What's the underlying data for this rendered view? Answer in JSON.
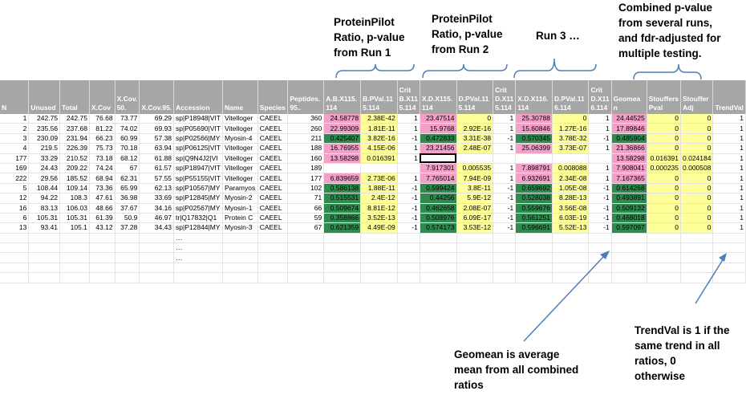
{
  "annotations": {
    "run1": "ProteinPilot Ratio, p-value from Run 1",
    "run2": "ProteinPilot Ratio, p-value from Run 2",
    "run3": "Run 3 …",
    "combined": "Combined p-value from several runs, and fdr-adjusted for multiple testing.",
    "geomean": "Geomean is average mean from all combined ratios",
    "trendval": "TrendVal is 1 if the same trend in all ratios, 0 otherwise"
  },
  "annotation_lines": {
    "run1": [
      "ProteinPilot",
      "Ratio, p-value",
      "from Run 1"
    ],
    "run2": [
      "ProteinPilot",
      "Ratio, p-value",
      "from Run 2"
    ],
    "combined": [
      "Combined p-value",
      "from several runs,",
      "and fdr-adjusted for",
      "multiple testing."
    ],
    "geomean": [
      "Geomean is average",
      "mean from all combined",
      "ratios"
    ],
    "trendval": [
      "TrendVal is 1 if the",
      "same trend in all",
      "ratios, 0",
      "otherwise"
    ]
  },
  "colors": {
    "pink": "#f3a0c9",
    "yellow": "#ffff99",
    "green": "#2f8a4f",
    "header": "#a6a6a6",
    "arrow": "#4f7db5"
  },
  "table": {
    "headers": [
      "N",
      "Unused",
      "Total",
      "X.Cov",
      "X.Cov.50.",
      "X.Cov.95.",
      "Accession",
      "Name",
      "Species",
      "Peptides.95..",
      "A.B.X115.114",
      "B.PVal.115.114",
      "Crit B.X115.114",
      "X.D.X115.114",
      "D.PVal.115.114",
      "Crit D.X115.114",
      "X.D.X116.114",
      "D.PVal.116.114",
      "Crit D.X116.114",
      "Geomean",
      "Stouffers Pval",
      "Stouffer Adj",
      "TrendVal"
    ],
    "header_display": [
      "N",
      "Unused",
      "Total",
      "X.Cov",
      "X.Cov.\n50.",
      "X.Cov.95.",
      "Accession",
      "Name",
      "Species",
      "Peptides.\n95..",
      "A.B.X115.\n114",
      "B.PVal.11\n5.114",
      "Crit\nB.X11\n5.114",
      "X.D.X115.\n114",
      "D.PVal.11\n5.114",
      "Crit\nD.X11\n5.114",
      "X.D.X116.\n114",
      "D.PVal.11\n6.114",
      "Crit\nD.X11\n6.114",
      "Geomea\nn",
      "Stouffers\nPval",
      "Stouffer\nAdj",
      "TrendVal"
    ],
    "rows": [
      [
        "1",
        "242.75",
        "242.75",
        "76.68",
        "73.77",
        "69.29",
        "sp|P18948|VIT",
        "Vitelloger",
        "CAEEL",
        "360",
        "24.58778",
        "2.38E-42",
        "1",
        "23.47514",
        "0",
        "1",
        "25.30788",
        "0",
        "1",
        "24.44525",
        "0",
        "0",
        "1"
      ],
      [
        "2",
        "235.56",
        "237.68",
        "81.22",
        "74.02",
        "69.93",
        "sp|P05690|VIT",
        "Vitelloger",
        "CAEEL",
        "260",
        "22.99309",
        "1.81E-11",
        "1",
        "15.9768",
        "2.92E-16",
        "1",
        "15.60846",
        "1.27E-16",
        "1",
        "17.89846",
        "0",
        "0",
        "1"
      ],
      [
        "3",
        "230.09",
        "231.94",
        "66.23",
        "60.99",
        "57.38",
        "sp|P02566|MY",
        "Myosin-4",
        "CAEEL",
        "211",
        "0.425407",
        "3.82E-16",
        "-1",
        "0.472833",
        "3.31E-38",
        "-1",
        "0.570345",
        "3.78E-32",
        "-1",
        "0.485904",
        "0",
        "0",
        "1"
      ],
      [
        "4",
        "219.5",
        "226.39",
        "75.73",
        "70.18",
        "63.94",
        "sp|P06125|VIT",
        "Vitelloger",
        "CAEEL",
        "188",
        "16.76955",
        "4.15E-06",
        "1",
        "23.21456",
        "2.48E-07",
        "1",
        "25.06399",
        "3.73E-07",
        "1",
        "21.36866",
        "0",
        "0",
        "1"
      ],
      [
        "177",
        "33.29",
        "210.52",
        "73.18",
        "68.12",
        "61.88",
        "sp|Q9N4J2|VI",
        "Vitelloger",
        "CAEEL",
        "160",
        "13.58298",
        "0.016391",
        "1",
        "",
        "",
        "",
        "",
        "",
        "",
        "13.58298",
        "0.016391",
        "0.024184",
        "1"
      ],
      [
        "169",
        "24.43",
        "209.22",
        "74.24",
        "67",
        "61.57",
        "sp|P18947|VIT",
        "Vitelloger",
        "CAEEL",
        "189",
        "",
        "",
        "",
        "7.917301",
        "0.005535",
        "1",
        "7.898791",
        "0.008088",
        "1",
        "7.908041",
        "0.000235",
        "0.000508",
        "1"
      ],
      [
        "222",
        "29.56",
        "185.52",
        "68.94",
        "62.31",
        "57.55",
        "sp|P55155|VIT",
        "Vitelloger",
        "CAEEL",
        "177",
        "6.839659",
        "2.73E-06",
        "1",
        "7.765014",
        "7.94E-09",
        "1",
        "6.932691",
        "2.34E-08",
        "1",
        "7.167365",
        "0",
        "0",
        "1"
      ],
      [
        "5",
        "108.44",
        "109.14",
        "73.36",
        "65.99",
        "62.13",
        "sp|P10567|MY",
        "Paramyos",
        "CAEEL",
        "102",
        "0.586138",
        "1.88E-11",
        "-1",
        "0.599424",
        "3.8E-11",
        "-1",
        "0.659692",
        "1.05E-08",
        "-1",
        "0.614268",
        "0",
        "0",
        "1"
      ],
      [
        "12",
        "94.22",
        "108.3",
        "47.61",
        "36.98",
        "33.69",
        "sp|P12845|MY",
        "Myosin-2",
        "CAEEL",
        "71",
        "0.515531",
        "2.4E-12",
        "-1",
        "0.44256",
        "5.9E-12",
        "-1",
        "0.528038",
        "8.28E-13",
        "-1",
        "0.493891",
        "0",
        "0",
        "1"
      ],
      [
        "16",
        "83.13",
        "106.03",
        "48.66",
        "37.67",
        "34.16",
        "sp|P02567|MY",
        "Myosin-1",
        "CAEEL",
        "66",
        "0.509674",
        "8.81E-12",
        "-1",
        "0.462658",
        "2.08E-07",
        "-1",
        "0.559676",
        "3.56E-08",
        "-1",
        "0.509132",
        "0",
        "0",
        "1"
      ],
      [
        "6",
        "105.31",
        "105.31",
        "61.39",
        "50.9",
        "46.97",
        "tr|Q17832|Q1",
        "Protein C",
        "CAEEL",
        "59",
        "0.358866",
        "3.52E-13",
        "-1",
        "0.508976",
        "6.09E-17",
        "-1",
        "0.561251",
        "6.03E-19",
        "-1",
        "0.468018",
        "0",
        "0",
        "1"
      ],
      [
        "13",
        "93.41",
        "105.1",
        "43.12",
        "37.28",
        "34.43",
        "sp|P12844|MY",
        "Myosin-3",
        "CAEEL",
        "67",
        "0.621359",
        "4.49E-09",
        "-1",
        "0.574173",
        "3.53E-12",
        "-1",
        "0.596691",
        "5.52E-13",
        "-1",
        "0.597097",
        "0",
        "0",
        "1"
      ]
    ],
    "ellipsis_rows": [
      "…",
      "…",
      "…"
    ]
  }
}
